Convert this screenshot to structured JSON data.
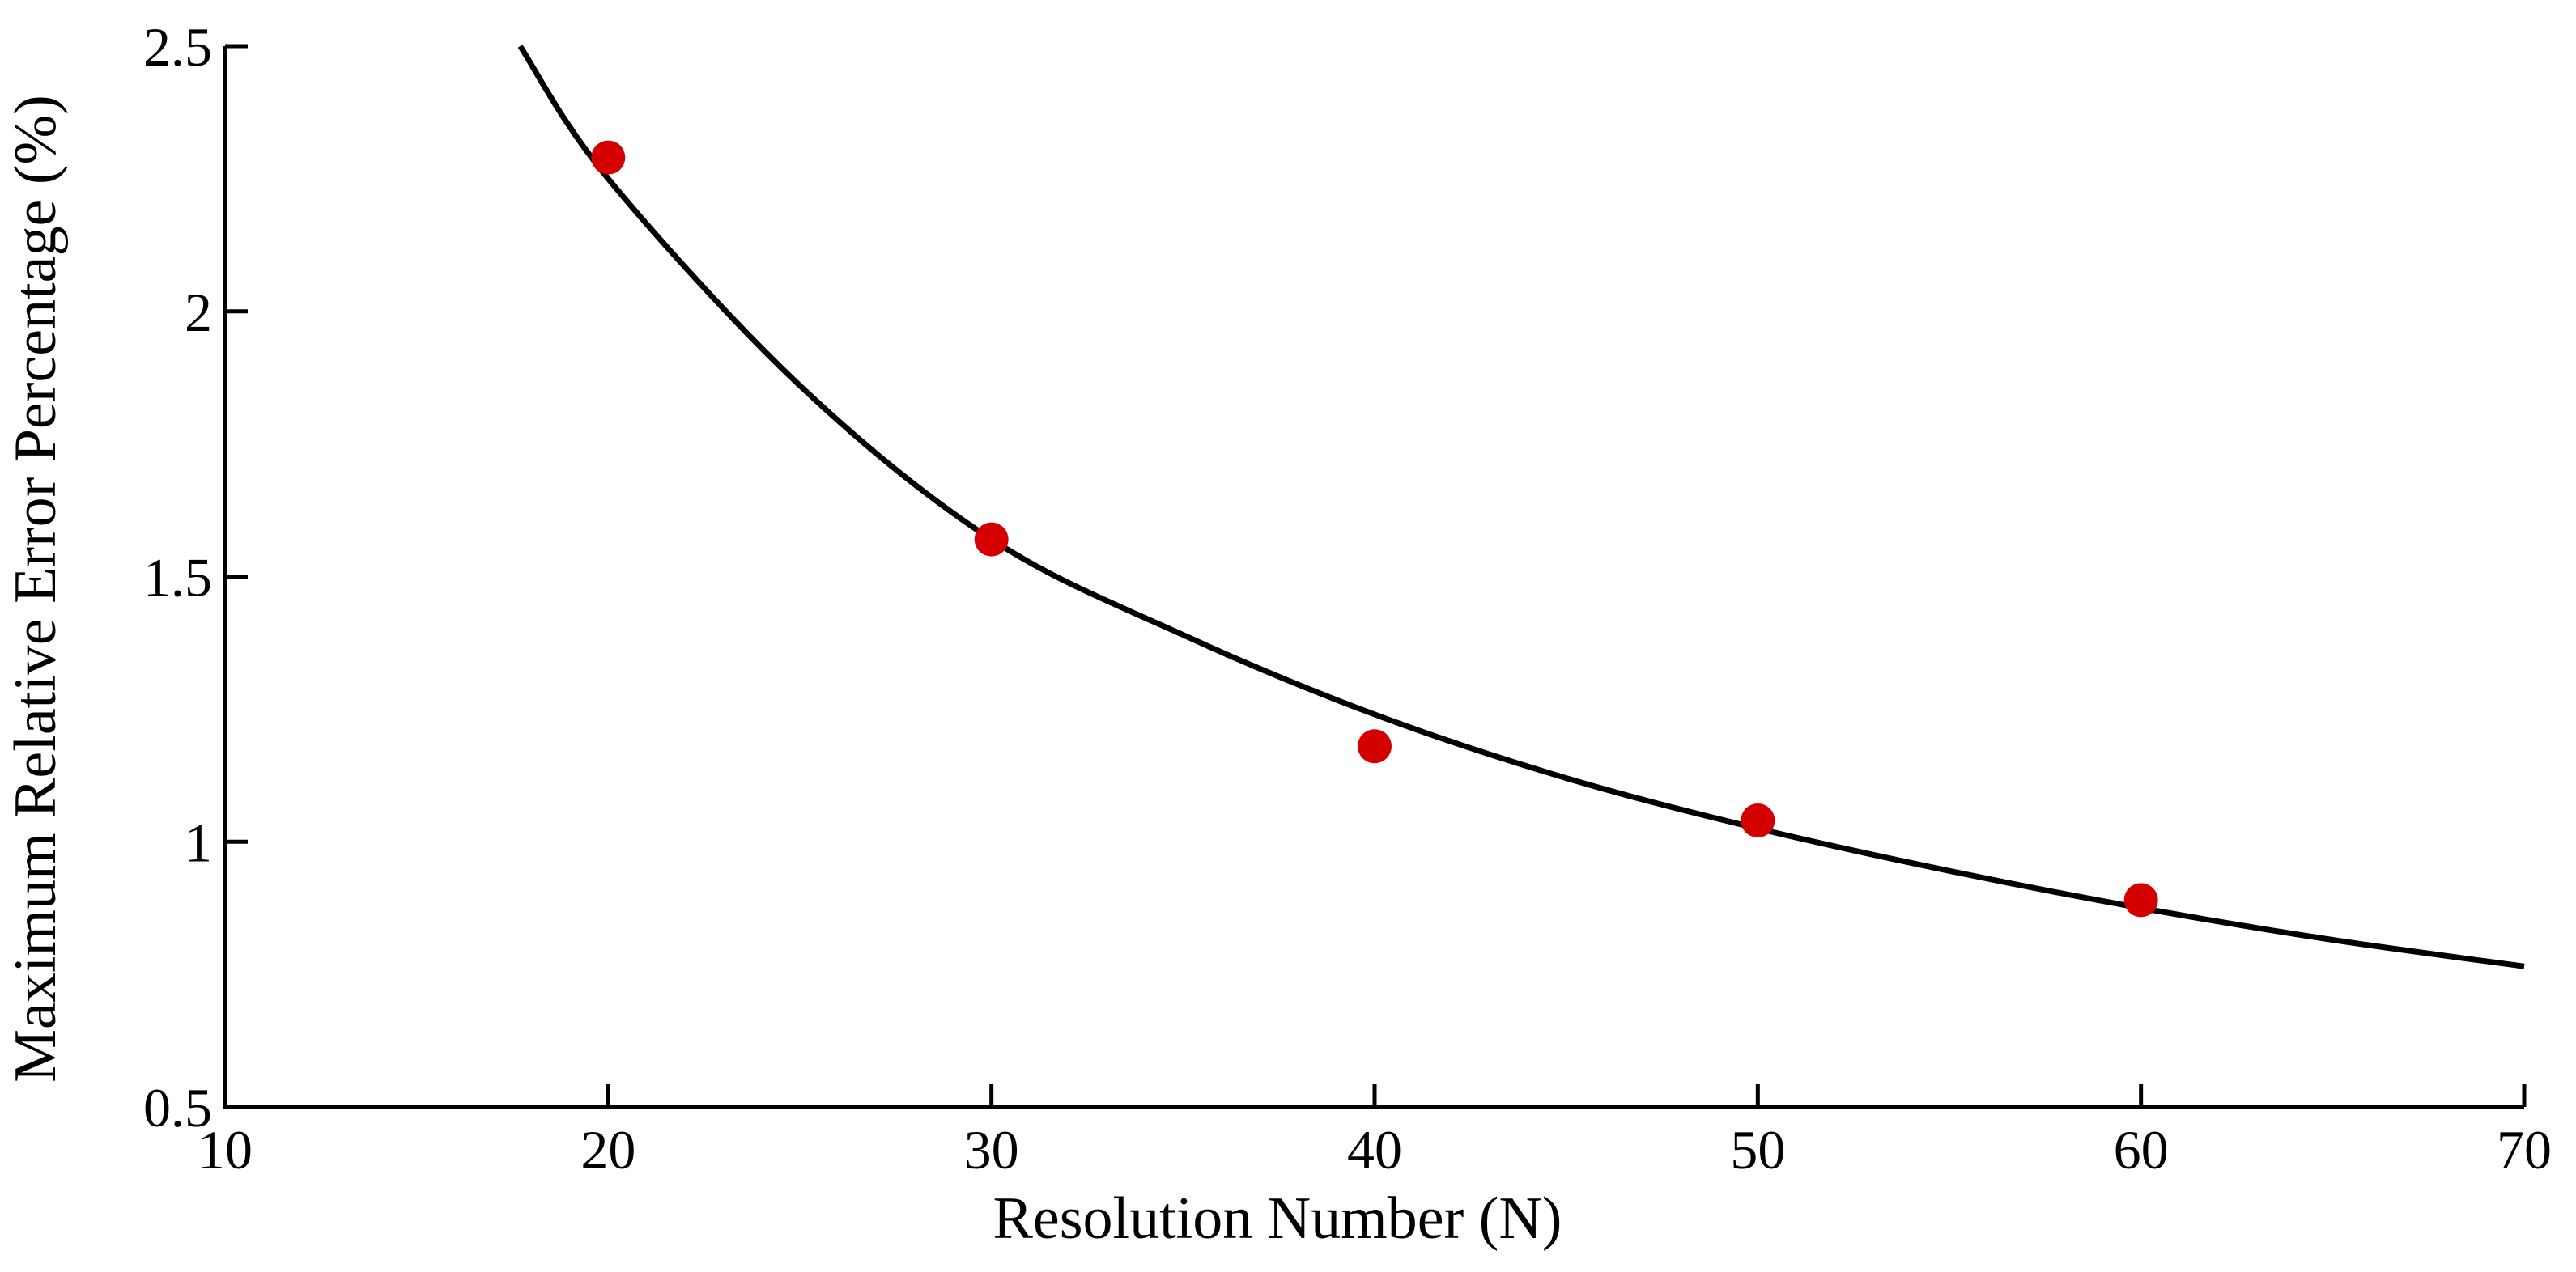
{
  "chart_data": {
    "type": "scatter",
    "title": "",
    "xlabel": "Resolution Number (N)",
    "ylabel": "Maximum Relative Error Percentage (%)",
    "xlim": [
      10,
      70
    ],
    "ylim": [
      0.5,
      2.5
    ],
    "xticks": [
      10,
      20,
      30,
      40,
      50,
      60,
      70
    ],
    "xtick_labels": [
      "10",
      "20",
      "30",
      "40",
      "50",
      "60",
      "70"
    ],
    "yticks": [
      0.5,
      1,
      1.5,
      2,
      2.5
    ],
    "ytick_labels": [
      "0.5",
      "1",
      "1.5",
      "2",
      "2.5"
    ],
    "grid": false,
    "legend": "none",
    "series": [
      {
        "type": "scatter",
        "x": [
          20,
          30,
          40,
          50,
          60
        ],
        "y": [
          2.29,
          1.57,
          1.18,
          1.04,
          0.89
        ],
        "color": "#d40000"
      },
      {
        "type": "line",
        "x": [
          17.7,
          20,
          25,
          30,
          35,
          40,
          45,
          50,
          55,
          60,
          65,
          70
        ],
        "y": [
          2.5,
          2.25,
          1.86,
          1.57,
          1.39,
          1.24,
          1.12,
          1.025,
          0.945,
          0.875,
          0.815,
          0.765
        ],
        "color": "#000000"
      }
    ]
  }
}
